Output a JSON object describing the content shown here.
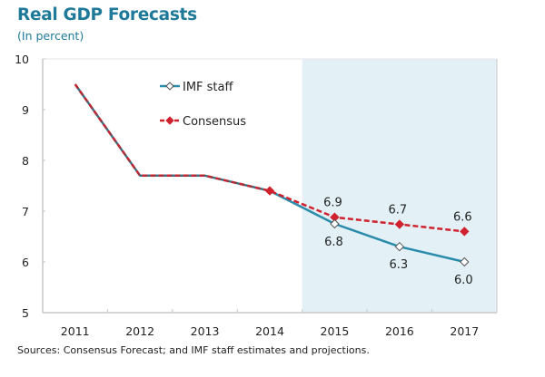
{
  "header": {
    "title": "Real GDP Forecasts",
    "subtitle": "(In percent)"
  },
  "footer": {
    "source": "Sources: Consensus Forecast; and IMF staff estimates and projections."
  },
  "colors": {
    "title": "#1f7a9a",
    "imf": "#2a8bab",
    "consensus": "#d0222e",
    "shade": "#e3f1f7",
    "axis": "#c8c8c8"
  },
  "chart_data": {
    "type": "line",
    "title": "Real GDP Forecasts",
    "subtitle": "(In percent)",
    "xlabel": "",
    "ylabel": "",
    "categories": [
      "2011",
      "2012",
      "2013",
      "2014",
      "2015",
      "2016",
      "2017"
    ],
    "ylim": [
      5,
      10
    ],
    "yticks": [
      5,
      6,
      7,
      8,
      9,
      10
    ],
    "grid": false,
    "legend_position": "top-left",
    "shaded_region": {
      "from": "2015",
      "to": "2017",
      "description": "forecast period"
    },
    "series": [
      {
        "name": "IMF staff",
        "values": [
          9.5,
          7.7,
          7.7,
          7.4,
          6.75,
          6.3,
          6.0
        ],
        "labels": [
          null,
          null,
          null,
          null,
          "6.8",
          "6.3",
          "6.0"
        ],
        "line_style": "solid",
        "marker": "hollow-diamond"
      },
      {
        "name": "Consensus",
        "values": [
          9.5,
          7.7,
          7.7,
          7.4,
          6.88,
          6.74,
          6.6
        ],
        "labels": [
          null,
          null,
          null,
          null,
          "6.9",
          "6.7",
          "6.6"
        ],
        "line_style": "dashed",
        "marker": "filled-diamond"
      }
    ]
  }
}
